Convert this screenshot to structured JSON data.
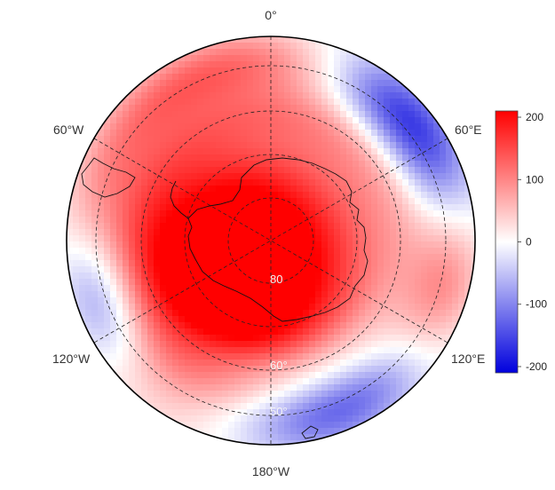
{
  "map": {
    "projection": "south-polar-stereographic",
    "longitude_labels": [
      "0°",
      "60°E",
      "120°E",
      "180°W",
      "120°W",
      "60°W"
    ],
    "latitude_labels": [
      "80",
      "60°",
      "50°"
    ],
    "gridlines": {
      "meridians": true,
      "parallels": true,
      "style": "dashed"
    },
    "colors": {
      "high": "#ff0000",
      "mid": "#ffffff",
      "low": "#0000cc"
    },
    "field_description": "diverging anomaly field, positive over Antarctica and 0–180°W sector, negative near 60°E and 90–150°W and 150–180°E"
  },
  "colorbar": {
    "min": -210,
    "max": 210,
    "ticks": [
      "200",
      "100",
      "0",
      "-100",
      "-200"
    ],
    "tick_values": [
      200,
      100,
      0,
      -100,
      -200
    ],
    "colors": [
      "#0000dd",
      "#ffffff",
      "#ff0000"
    ]
  }
}
